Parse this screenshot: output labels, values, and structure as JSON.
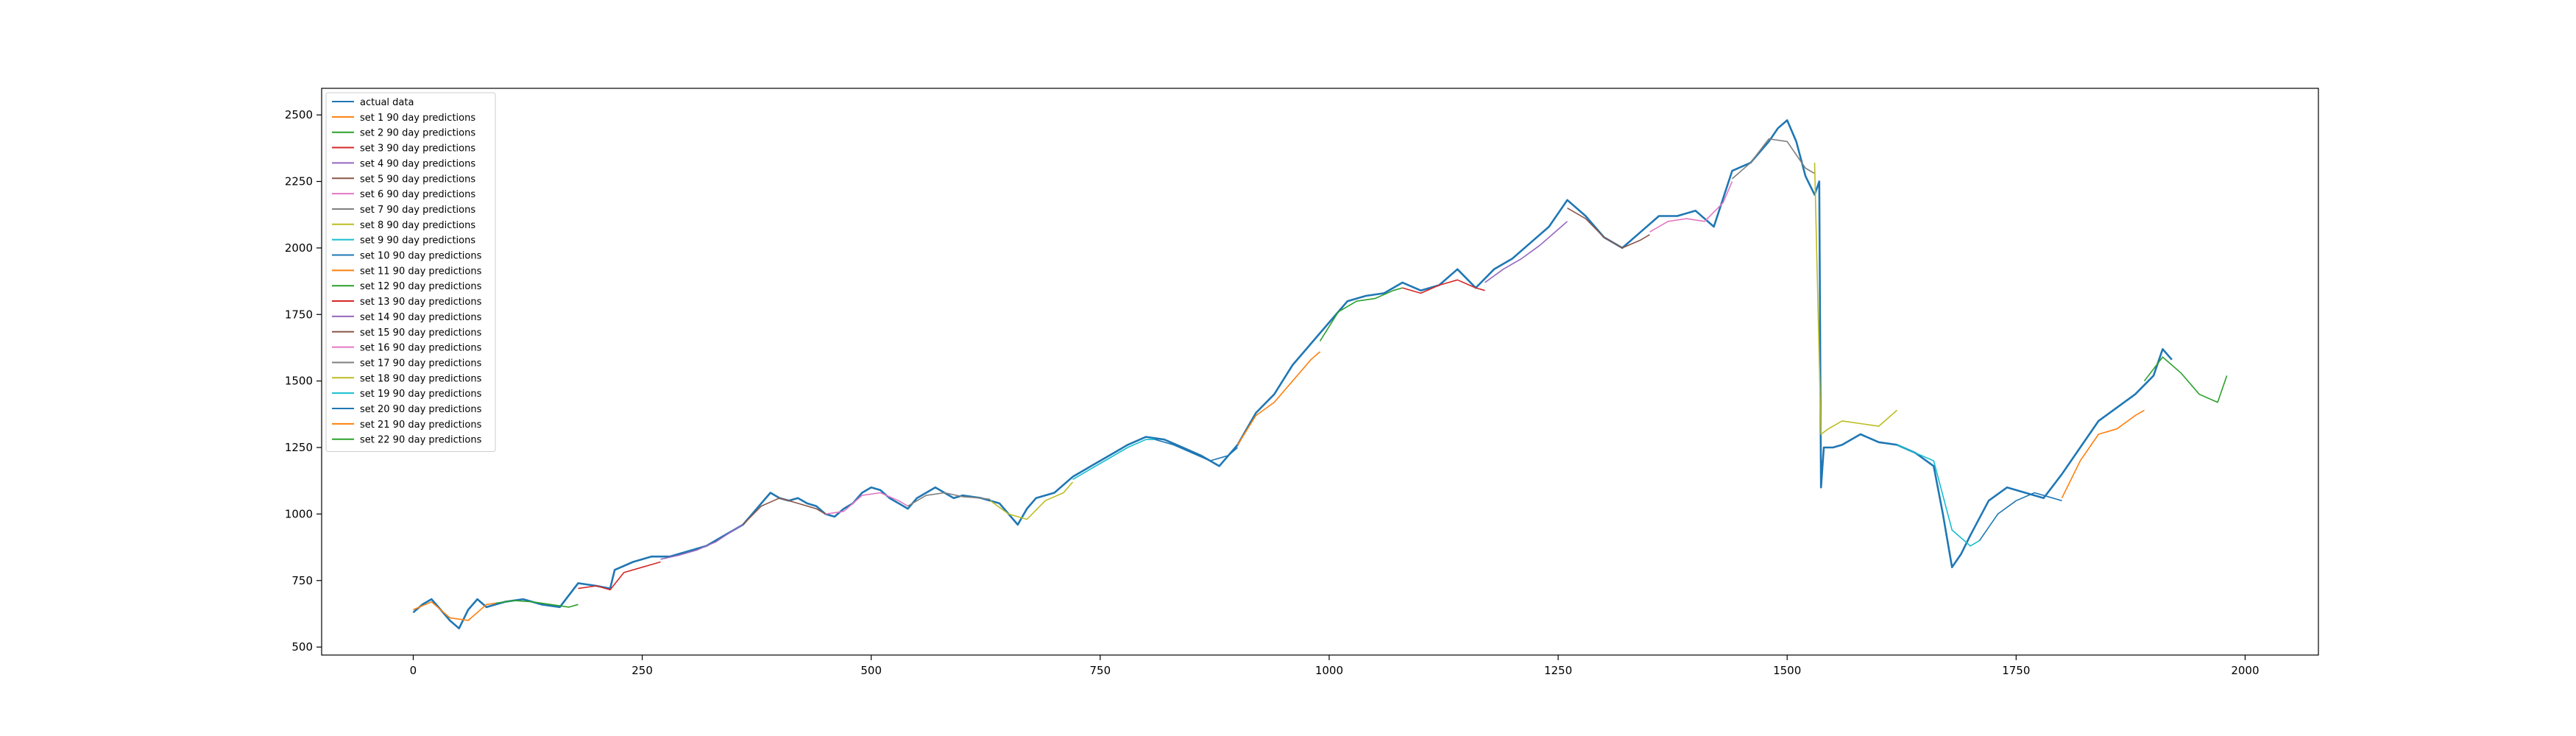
{
  "chart_data": {
    "type": "line",
    "title": "",
    "xlabel": "",
    "ylabel": "",
    "xlim": [
      -100,
      2080
    ],
    "ylim": [
      470,
      2600
    ],
    "x_ticks": [
      0,
      250,
      500,
      750,
      1000,
      1250,
      1500,
      1750,
      2000
    ],
    "y_ticks": [
      500,
      750,
      1000,
      1250,
      1500,
      1750,
      2000,
      2250,
      2500
    ],
    "grid": false,
    "legend_position": "top-left",
    "series": [
      {
        "name": "actual data",
        "color": "#1f77b4",
        "x": [
          0,
          10,
          20,
          30,
          40,
          50,
          60,
          70,
          80,
          90,
          100,
          120,
          140,
          160,
          180,
          200,
          215,
          220,
          240,
          260,
          280,
          300,
          320,
          340,
          360,
          380,
          390,
          400,
          410,
          420,
          430,
          440,
          450,
          460,
          470,
          480,
          490,
          500,
          510,
          520,
          530,
          540,
          550,
          560,
          570,
          580,
          590,
          600,
          620,
          640,
          650,
          660,
          670,
          680,
          700,
          720,
          740,
          760,
          780,
          800,
          820,
          840,
          860,
          880,
          900,
          920,
          940,
          960,
          980,
          1000,
          1020,
          1040,
          1060,
          1080,
          1100,
          1120,
          1140,
          1160,
          1180,
          1200,
          1220,
          1240,
          1260,
          1280,
          1300,
          1320,
          1340,
          1360,
          1380,
          1400,
          1420,
          1440,
          1460,
          1480,
          1490,
          1500,
          1510,
          1520,
          1530,
          1535,
          1537,
          1540,
          1550,
          1560,
          1580,
          1600,
          1620,
          1640,
          1660,
          1670,
          1680,
          1690,
          1700,
          1720,
          1740,
          1760,
          1780,
          1800,
          1820,
          1840,
          1860,
          1880,
          1900,
          1910,
          1920
        ],
        "y": [
          630,
          660,
          680,
          640,
          600,
          570,
          640,
          680,
          650,
          660,
          670,
          680,
          660,
          650,
          740,
          730,
          720,
          790,
          820,
          840,
          840,
          860,
          880,
          920,
          960,
          1040,
          1080,
          1060,
          1050,
          1060,
          1040,
          1030,
          1000,
          990,
          1020,
          1040,
          1080,
          1100,
          1090,
          1060,
          1040,
          1020,
          1060,
          1080,
          1100,
          1080,
          1060,
          1070,
          1060,
          1040,
          1000,
          960,
          1020,
          1060,
          1080,
          1140,
          1180,
          1220,
          1260,
          1290,
          1280,
          1250,
          1220,
          1180,
          1260,
          1380,
          1450,
          1560,
          1640,
          1720,
          1800,
          1820,
          1830,
          1870,
          1840,
          1860,
          1920,
          1850,
          1920,
          1960,
          2020,
          2080,
          2180,
          2120,
          2040,
          2000,
          2060,
          2120,
          2120,
          2140,
          2080,
          2290,
          2320,
          2400,
          2450,
          2480,
          2400,
          2270,
          2200,
          2250,
          1100,
          1250,
          1250,
          1260,
          1300,
          1270,
          1260,
          1230,
          1180,
          1000,
          800,
          850,
          920,
          1050,
          1100,
          1080,
          1060,
          1150,
          1250,
          1350,
          1400,
          1450,
          1520,
          1620,
          1580
        ]
      },
      {
        "name": "set 1 90 day predictions",
        "color": "#ff7f0e",
        "x": [
          0,
          20,
          40,
          60,
          80,
          90
        ],
        "y": [
          640,
          670,
          610,
          600,
          660,
          665
        ]
      },
      {
        "name": "set 2 90 day predictions",
        "color": "#2ca02c",
        "x": [
          90,
          110,
          130,
          150,
          170,
          180
        ],
        "y": [
          665,
          675,
          670,
          660,
          650,
          660
        ]
      },
      {
        "name": "set 3 90 day predictions",
        "color": "#d62728",
        "x": [
          180,
          200,
          215,
          230,
          250,
          270
        ],
        "y": [
          720,
          730,
          715,
          780,
          800,
          820
        ]
      },
      {
        "name": "set 4 90 day predictions",
        "color": "#9467bd",
        "x": [
          270,
          290,
          310,
          330,
          350,
          360
        ],
        "y": [
          830,
          845,
          865,
          895,
          940,
          960
        ]
      },
      {
        "name": "set 5 90 day predictions",
        "color": "#8c564b",
        "x": [
          360,
          380,
          400,
          420,
          440,
          450
        ],
        "y": [
          960,
          1030,
          1060,
          1040,
          1020,
          1000
        ]
      },
      {
        "name": "set 6 90 day predictions",
        "color": "#e377c2",
        "x": [
          450,
          470,
          490,
          510,
          530,
          540
        ],
        "y": [
          1000,
          1010,
          1070,
          1080,
          1050,
          1030
        ]
      },
      {
        "name": "set 7 90 day predictions",
        "color": "#7f7f7f",
        "x": [
          540,
          560,
          580,
          600,
          620,
          630
        ],
        "y": [
          1030,
          1070,
          1080,
          1065,
          1060,
          1055
        ]
      },
      {
        "name": "set 8 90 day predictions",
        "color": "#bcbd22",
        "x": [
          630,
          650,
          670,
          690,
          710,
          720
        ],
        "y": [
          1050,
          1000,
          980,
          1050,
          1080,
          1120
        ]
      },
      {
        "name": "set 9 90 day predictions",
        "color": "#17becf",
        "x": [
          720,
          740,
          760,
          780,
          800,
          810
        ],
        "y": [
          1130,
          1170,
          1210,
          1250,
          1280,
          1280
        ]
      },
      {
        "name": "set 10 90 day predictions",
        "color": "#1f77b4",
        "x": [
          810,
          830,
          850,
          870,
          890,
          900
        ],
        "y": [
          1280,
          1260,
          1230,
          1200,
          1220,
          1250
        ]
      },
      {
        "name": "set 11 90 day predictions",
        "color": "#ff7f0e",
        "x": [
          900,
          920,
          940,
          960,
          980,
          990
        ],
        "y": [
          1260,
          1370,
          1420,
          1500,
          1580,
          1610
        ]
      },
      {
        "name": "set 12 90 day predictions",
        "color": "#2ca02c",
        "x": [
          990,
          1010,
          1030,
          1050,
          1070,
          1080
        ],
        "y": [
          1650,
          1760,
          1800,
          1810,
          1840,
          1850
        ]
      },
      {
        "name": "set 13 90 day predictions",
        "color": "#d62728",
        "x": [
          1080,
          1100,
          1120,
          1140,
          1160,
          1170
        ],
        "y": [
          1850,
          1830,
          1860,
          1880,
          1850,
          1840
        ]
      },
      {
        "name": "set 14 90 day predictions",
        "color": "#9467bd",
        "x": [
          1170,
          1190,
          1210,
          1230,
          1250,
          1260
        ],
        "y": [
          1870,
          1920,
          1960,
          2010,
          2070,
          2100
        ]
      },
      {
        "name": "set 15 90 day predictions",
        "color": "#8c564b",
        "x": [
          1260,
          1280,
          1300,
          1320,
          1340,
          1350
        ],
        "y": [
          2150,
          2110,
          2040,
          2000,
          2030,
          2050
        ]
      },
      {
        "name": "set 16 90 day predictions",
        "color": "#e377c2",
        "x": [
          1350,
          1370,
          1390,
          1410,
          1430,
          1440
        ],
        "y": [
          2060,
          2100,
          2110,
          2100,
          2170,
          2250
        ]
      },
      {
        "name": "set 17 90 day predictions",
        "color": "#7f7f7f",
        "x": [
          1440,
          1460,
          1480,
          1500,
          1520,
          1530
        ],
        "y": [
          2260,
          2320,
          2410,
          2400,
          2300,
          2280
        ]
      },
      {
        "name": "set 18 90 day predictions",
        "color": "#bcbd22",
        "x": [
          1530,
          1537,
          1545,
          1560,
          1580,
          1600,
          1620
        ],
        "y": [
          2320,
          1300,
          1320,
          1350,
          1340,
          1330,
          1390
        ]
      },
      {
        "name": "set 19 90 day predictions",
        "color": "#17becf",
        "x": [
          1620,
          1640,
          1660,
          1680,
          1700,
          1710
        ],
        "y": [
          1260,
          1230,
          1200,
          940,
          880,
          900
        ]
      },
      {
        "name": "set 20 90 day predictions",
        "color": "#1f77b4",
        "x": [
          1710,
          1730,
          1750,
          1770,
          1790,
          1800
        ],
        "y": [
          900,
          1000,
          1050,
          1080,
          1060,
          1050
        ]
      },
      {
        "name": "set 21 90 day predictions",
        "color": "#ff7f0e",
        "x": [
          1800,
          1820,
          1840,
          1860,
          1880,
          1890
        ],
        "y": [
          1060,
          1200,
          1300,
          1320,
          1370,
          1390
        ]
      },
      {
        "name": "set 22 90 day predictions",
        "color": "#2ca02c",
        "x": [
          1890,
          1910,
          1930,
          1950,
          1970,
          1980
        ],
        "y": [
          1500,
          1590,
          1530,
          1450,
          1420,
          1520
        ]
      }
    ]
  }
}
